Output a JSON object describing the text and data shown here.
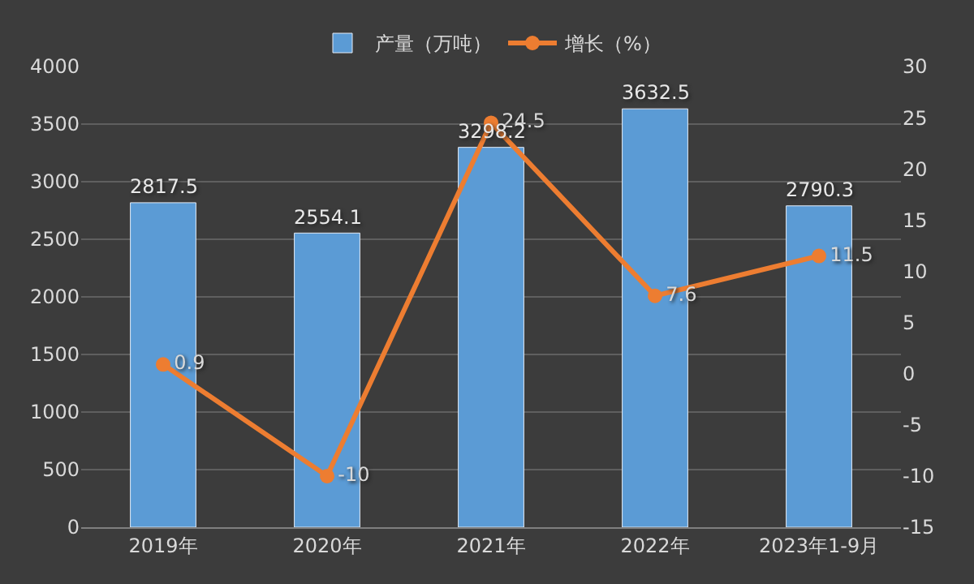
{
  "chart_data": {
    "type": "bar",
    "categories": [
      "2019年",
      "2020年",
      "2021年",
      "2022年",
      "2023年1-9月"
    ],
    "series": [
      {
        "name": "产量（万吨）",
        "color": "#5b9bd5",
        "values": [
          2817.5,
          2554.1,
          3298.2,
          3632.5,
          2790.3
        ]
      },
      {
        "name": "增长（%）",
        "type": "line",
        "axis": "y2",
        "color": "#ed7d31",
        "marker": "circle",
        "values": [
          0.9,
          -10,
          24.5,
          7.6,
          11.5
        ]
      }
    ],
    "ylim": [
      0,
      4000
    ],
    "yticks": [
      0,
      500,
      1000,
      1500,
      2000,
      2500,
      3000,
      3500,
      4000
    ],
    "y2lim": [
      -15,
      30
    ],
    "y2ticks": [
      -15,
      -10,
      -5,
      0,
      5,
      10,
      15,
      20,
      25,
      30
    ],
    "data_labels": true,
    "grid": "y",
    "legend": "top"
  }
}
